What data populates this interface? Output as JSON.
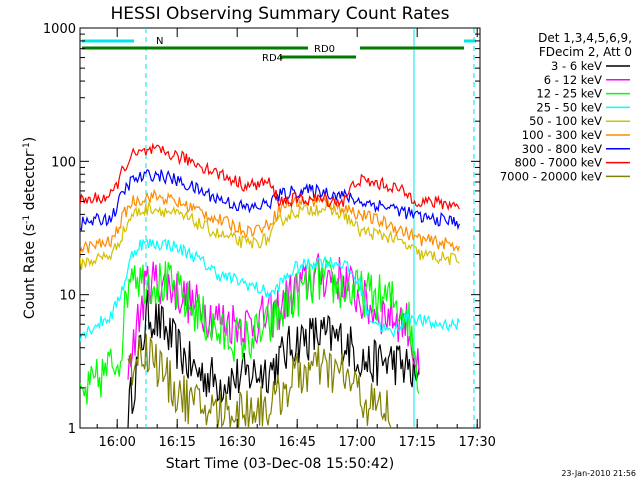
{
  "chart_data": {
    "type": "line",
    "title": "HESSI Observing Summary Count Rates",
    "xlabel": "Start Time (03-Dec-08 15:50:42)",
    "ylabel_main": "Count Rate (s",
    "ylabel_sup1": "-1",
    "ylabel_mid": " detector",
    "ylabel_sup2": "-1",
    "ylabel_end": ")",
    "yscale": "log",
    "ylim": [
      1,
      1000
    ],
    "xlim_minutes": [
      0,
      100
    ],
    "xticks": [
      "16:00",
      "16:15",
      "16:30",
      "16:45",
      "17:00",
      "17:15",
      "17:30"
    ],
    "xticks_minutes": [
      9.3,
      24.3,
      39.3,
      54.3,
      69.3,
      84.3,
      99.3
    ],
    "yticks": [
      "1",
      "10",
      "100",
      "1000"
    ],
    "ytick_values": [
      1,
      10,
      100,
      1000
    ],
    "legend_header": [
      "Det 1,3,4,5,6,9,",
      "FDecim 2, Att 0"
    ],
    "legend_placement": "right",
    "series": [
      {
        "name": "3 - 6 keV",
        "color": "#000000",
        "values": [
          [
            12,
            1.3
          ],
          [
            17,
            7.5
          ],
          [
            22,
            5
          ],
          [
            28,
            2.8
          ],
          [
            35,
            2.2
          ],
          [
            42,
            2.5
          ],
          [
            48,
            2.8
          ],
          [
            54,
            4.5
          ],
          [
            60,
            5
          ],
          [
            66,
            4.5
          ],
          [
            72,
            3
          ],
          [
            78,
            3.2
          ],
          [
            82,
            2.8
          ],
          [
            85,
            2
          ]
        ]
      },
      {
        "name": "6 - 12 keV",
        "color": "#ff00ff",
        "values": [
          [
            12,
            3
          ],
          [
            17,
            13
          ],
          [
            22,
            12
          ],
          [
            28,
            8.5
          ],
          [
            35,
            6.5
          ],
          [
            42,
            6
          ],
          [
            48,
            7
          ],
          [
            54,
            11
          ],
          [
            60,
            14
          ],
          [
            66,
            13
          ],
          [
            72,
            8
          ],
          [
            78,
            7
          ],
          [
            82,
            6
          ],
          [
            85,
            2.2
          ]
        ]
      },
      {
        "name": "12 - 25 keV",
        "color": "#00ff00",
        "values": [
          [
            0,
            1.6
          ],
          [
            10,
            3.5
          ],
          [
            12,
            12
          ],
          [
            13,
            18
          ],
          [
            15,
            13
          ],
          [
            22,
            12
          ],
          [
            28,
            8
          ],
          [
            35,
            5
          ],
          [
            42,
            4.5
          ],
          [
            48,
            6
          ],
          [
            54,
            10
          ],
          [
            60,
            13
          ],
          [
            66,
            11
          ],
          [
            72,
            10
          ],
          [
            78,
            9
          ],
          [
            82,
            7
          ],
          [
            85,
            2
          ]
        ]
      },
      {
        "name": "25 - 50 keV",
        "color": "#00ffff",
        "values": [
          [
            0,
            5
          ],
          [
            8,
            7
          ],
          [
            11,
            12
          ],
          [
            13,
            20
          ],
          [
            15,
            24
          ],
          [
            22,
            24
          ],
          [
            28,
            20
          ],
          [
            35,
            14
          ],
          [
            42,
            12
          ],
          [
            48,
            10
          ],
          [
            50,
            12
          ],
          [
            54,
            16
          ],
          [
            60,
            18
          ],
          [
            66,
            17
          ],
          [
            70,
            12
          ],
          [
            72,
            7
          ],
          [
            78,
            5
          ],
          [
            82,
            7
          ],
          [
            88,
            6
          ],
          [
            95,
            6
          ]
        ]
      },
      {
        "name": "50 - 100 keV",
        "color": "#d4c000",
        "values": [
          [
            0,
            17
          ],
          [
            8,
            20
          ],
          [
            11,
            30
          ],
          [
            13,
            40
          ],
          [
            18,
            45
          ],
          [
            22,
            42
          ],
          [
            28,
            36
          ],
          [
            35,
            28
          ],
          [
            42,
            24
          ],
          [
            47,
            26
          ],
          [
            50,
            36
          ],
          [
            54,
            42
          ],
          [
            60,
            45
          ],
          [
            66,
            40
          ],
          [
            70,
            30
          ],
          [
            78,
            27
          ],
          [
            85,
            20
          ],
          [
            95,
            18
          ]
        ]
      },
      {
        "name": "100 - 300 keV",
        "color": "#ff8c00",
        "values": [
          [
            0,
            22
          ],
          [
            8,
            25
          ],
          [
            11,
            40
          ],
          [
            13,
            50
          ],
          [
            18,
            55
          ],
          [
            22,
            52
          ],
          [
            28,
            45
          ],
          [
            35,
            36
          ],
          [
            42,
            30
          ],
          [
            47,
            33
          ],
          [
            50,
            45
          ],
          [
            54,
            50
          ],
          [
            60,
            50
          ],
          [
            66,
            45
          ],
          [
            70,
            40
          ],
          [
            78,
            33
          ],
          [
            85,
            26
          ],
          [
            95,
            23
          ]
        ]
      },
      {
        "name": "300 - 800 keV",
        "color": "#0000ff",
        "values": [
          [
            0,
            34
          ],
          [
            8,
            38
          ],
          [
            11,
            60
          ],
          [
            13,
            72
          ],
          [
            18,
            80
          ],
          [
            22,
            76
          ],
          [
            28,
            64
          ],
          [
            35,
            52
          ],
          [
            42,
            44
          ],
          [
            47,
            48
          ],
          [
            50,
            56
          ],
          [
            54,
            60
          ],
          [
            60,
            60
          ],
          [
            66,
            55
          ],
          [
            70,
            50
          ],
          [
            78,
            45
          ],
          [
            85,
            38
          ],
          [
            95,
            35
          ]
        ]
      },
      {
        "name": "800 - 7000 keV",
        "color": "#ff0000",
        "values": [
          [
            0,
            50
          ],
          [
            8,
            55
          ],
          [
            11,
            90
          ],
          [
            13,
            110
          ],
          [
            18,
            120
          ],
          [
            22,
            115
          ],
          [
            28,
            100
          ],
          [
            35,
            80
          ],
          [
            42,
            65
          ],
          [
            47,
            70
          ],
          [
            50,
            50
          ],
          [
            54,
            52
          ],
          [
            60,
            52
          ],
          [
            66,
            50
          ],
          [
            69,
            72
          ],
          [
            72,
            70
          ],
          [
            78,
            65
          ],
          [
            85,
            50
          ],
          [
            95,
            47
          ]
        ]
      },
      {
        "name": "7000 - 20000 keV",
        "color": "#808000",
        "values": [
          [
            12,
            2.5
          ],
          [
            15,
            4
          ],
          [
            18,
            3.6
          ],
          [
            22,
            2.2
          ],
          [
            28,
            1.5
          ],
          [
            35,
            1.3
          ],
          [
            48,
            1.5
          ],
          [
            54,
            2.5
          ],
          [
            60,
            2.8
          ],
          [
            66,
            2.5
          ],
          [
            72,
            1.5
          ],
          [
            78,
            1.3
          ]
        ]
      }
    ],
    "annotations": {
      "n_label": "N",
      "rd0_label": "RD0",
      "rd4_label": "RD4",
      "timestamp": "23-Jan-2010 21:56"
    },
    "vlines_minutes": [
      16.5,
      83.5,
      98.5
    ]
  }
}
